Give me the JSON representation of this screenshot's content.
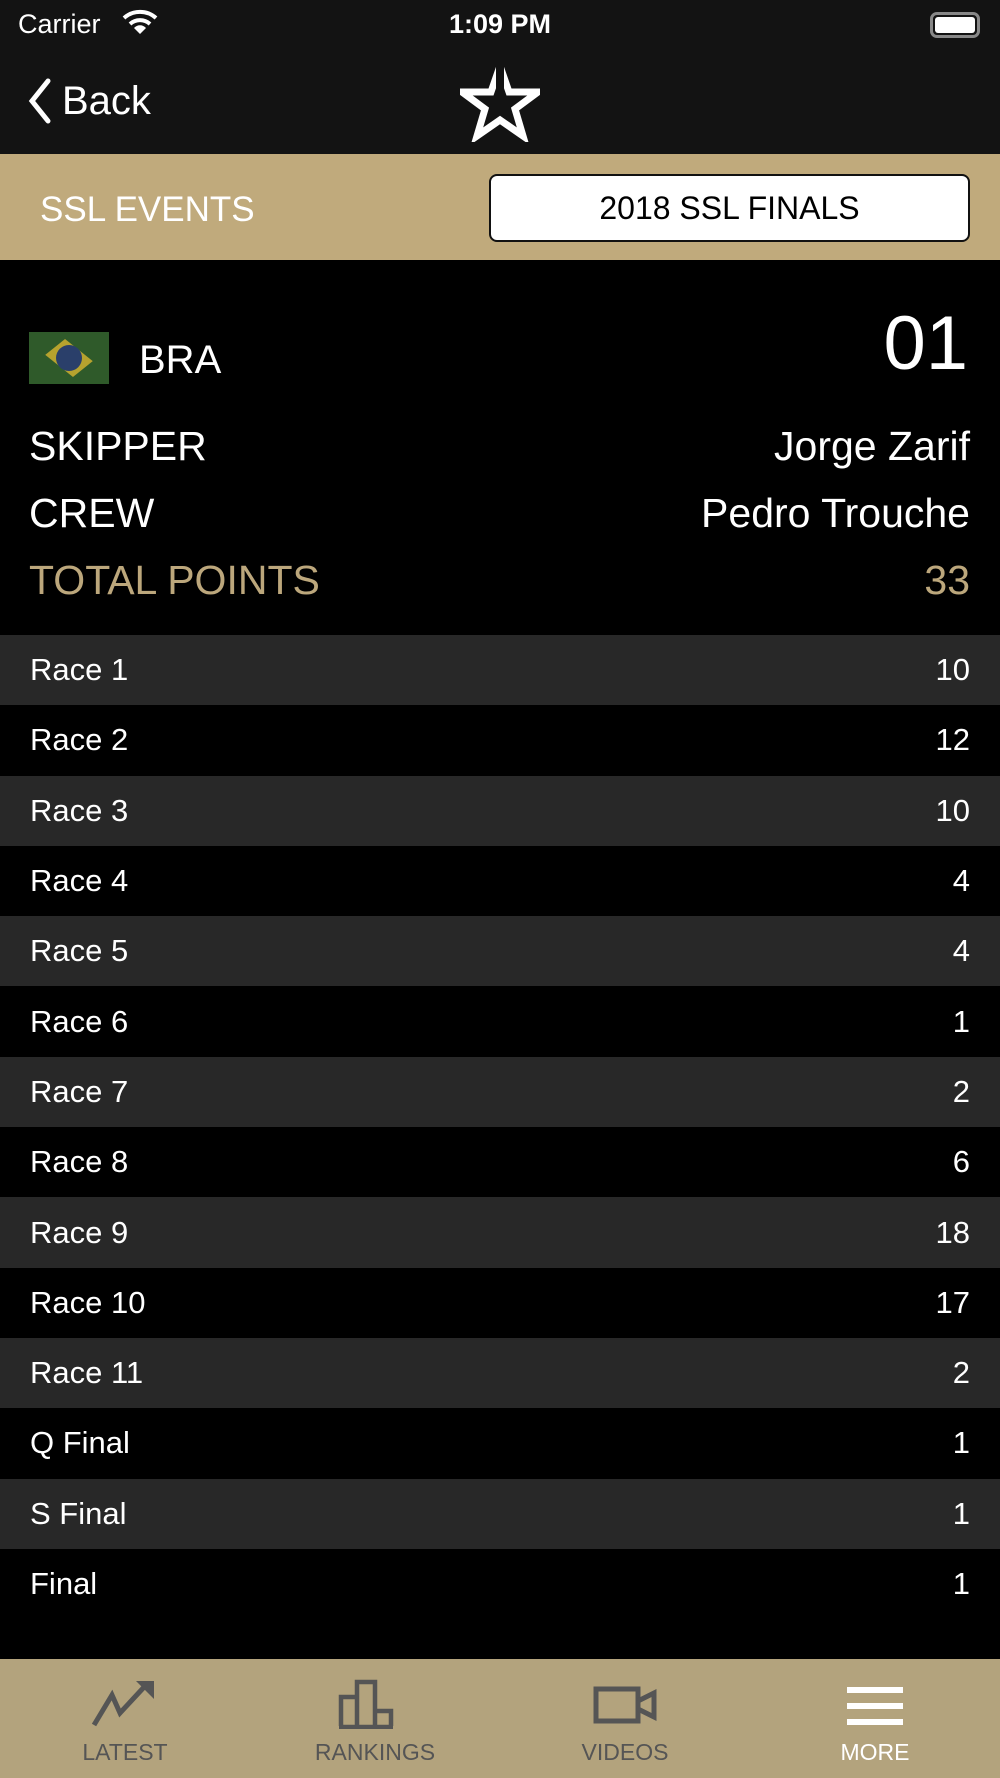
{
  "status_bar": {
    "carrier": "Carrier",
    "time": "1:09 PM"
  },
  "nav": {
    "back_label": "Back",
    "logo_icon": "star-logo-icon"
  },
  "events": {
    "label": "SSL EVENTS",
    "selected": "2018 SSL FINALS"
  },
  "team": {
    "country": "BRA",
    "rank": "01",
    "skipper_label": "SKIPPER",
    "skipper": "Jorge Zarif",
    "crew_label": "CREW",
    "crew": "Pedro Trouche",
    "total_label": "TOTAL POINTS",
    "total": "33"
  },
  "races": [
    {
      "name": "Race 1",
      "points": "10"
    },
    {
      "name": "Race 2",
      "points": "12"
    },
    {
      "name": "Race 3",
      "points": "10"
    },
    {
      "name": "Race 4",
      "points": "4"
    },
    {
      "name": "Race 5",
      "points": "4"
    },
    {
      "name": "Race 6",
      "points": "1"
    },
    {
      "name": "Race 7",
      "points": "2"
    },
    {
      "name": "Race 8",
      "points": "6"
    },
    {
      "name": "Race 9",
      "points": "18"
    },
    {
      "name": "Race 10",
      "points": "17"
    },
    {
      "name": "Race 11",
      "points": "2"
    },
    {
      "name": "Q Final",
      "points": "1"
    },
    {
      "name": "S Final",
      "points": "1"
    },
    {
      "name": "Final",
      "points": "1"
    }
  ],
  "tabs": [
    {
      "label": "LATEST",
      "icon": "trend-icon"
    },
    {
      "label": "RANKINGS",
      "icon": "podium-icon"
    },
    {
      "label": "VIDEOS",
      "icon": "video-icon"
    },
    {
      "label": "MORE",
      "icon": "menu-icon",
      "active": true
    }
  ],
  "colors": {
    "gold": "#c0aa7c",
    "tabbar": "#b3a37d",
    "accent_text": "#bca77c"
  }
}
